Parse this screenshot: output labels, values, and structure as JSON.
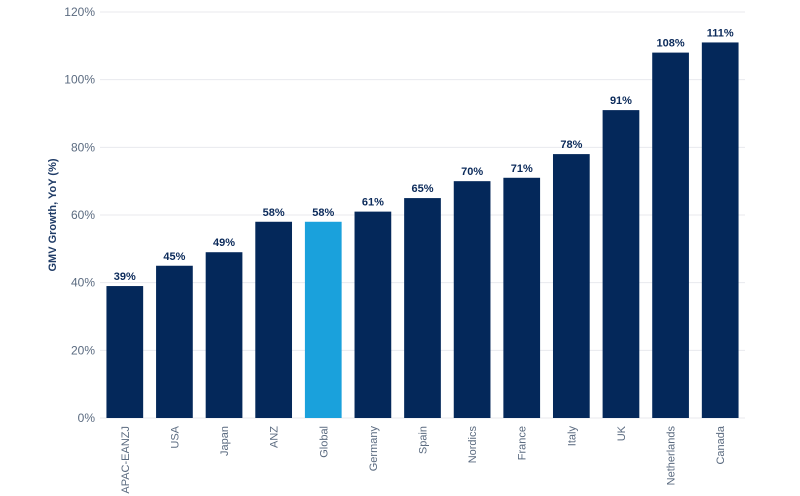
{
  "chart_data": {
    "type": "bar",
    "title": "",
    "xlabel": "",
    "ylabel": "GMV Growth, YoY (%)",
    "categories": [
      "APAC-EANZJ",
      "USA",
      "Japan",
      "ANZ",
      "Global",
      "Germany",
      "Spain",
      "Nordics",
      "France",
      "Italy",
      "UK",
      "Netherlands",
      "Canada"
    ],
    "values": [
      39,
      45,
      49,
      58,
      58,
      61,
      65,
      70,
      71,
      78,
      91,
      108,
      111
    ],
    "data_labels": [
      "39%",
      "45%",
      "49%",
      "58%",
      "58%",
      "61%",
      "65%",
      "70%",
      "71%",
      "78%",
      "91%",
      "108%",
      "111%"
    ],
    "ylim": [
      0,
      120
    ],
    "yticks": [
      0,
      20,
      40,
      60,
      80,
      100,
      120
    ],
    "ytick_labels": [
      "0%",
      "20%",
      "40%",
      "60%",
      "80%",
      "100%",
      "120%"
    ],
    "grid": true,
    "colors": {
      "default": "#04285a",
      "highlight": "#1aa1dc",
      "grid": "#e8eaee"
    },
    "highlight_category": "Global"
  }
}
